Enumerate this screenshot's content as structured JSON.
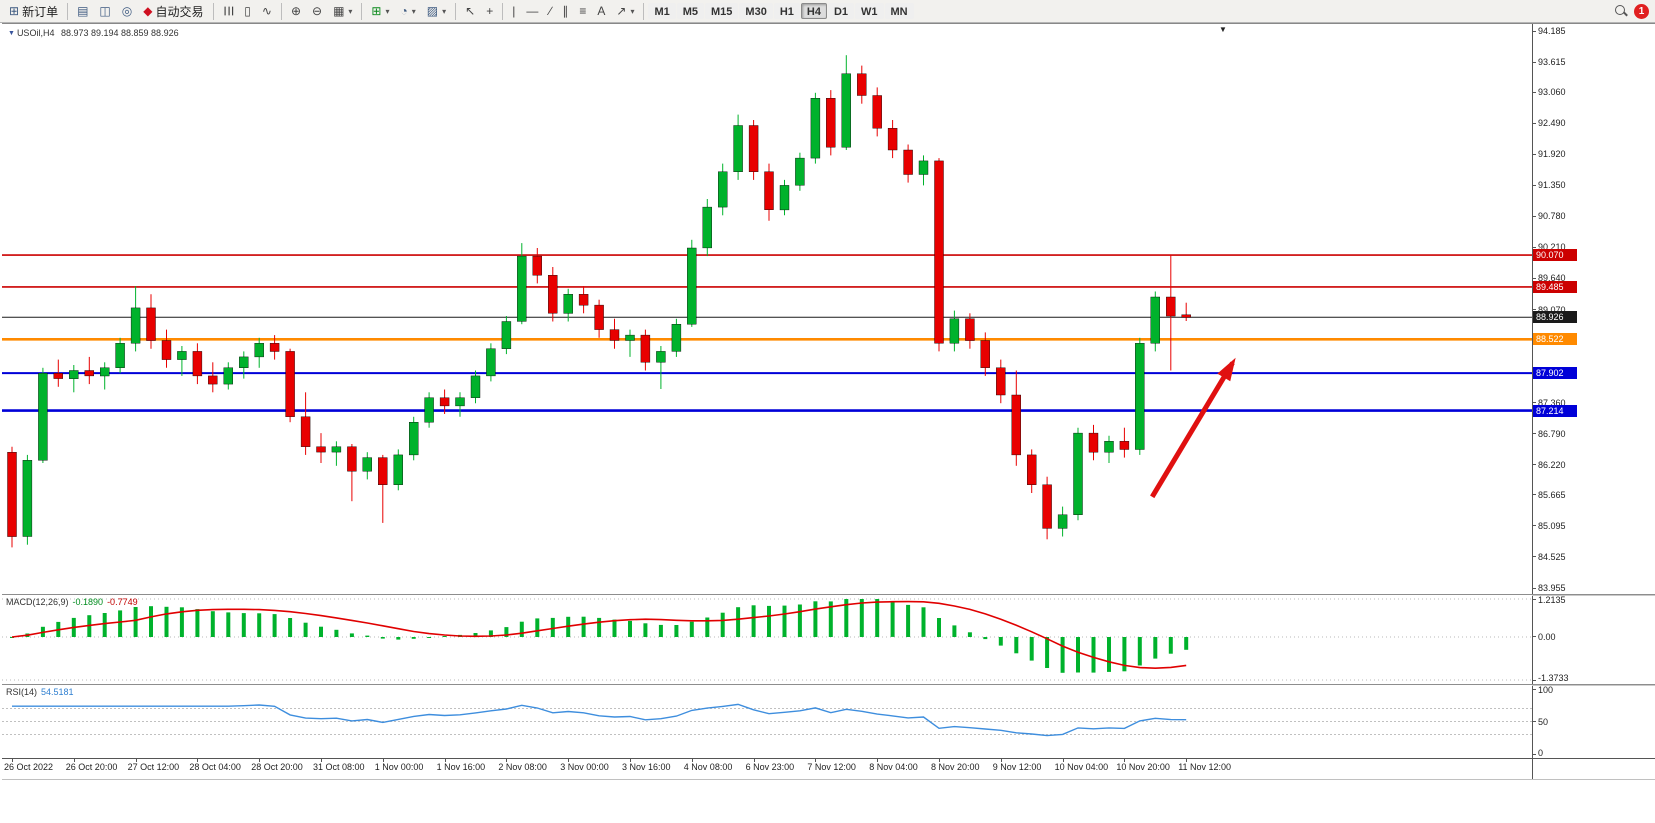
{
  "window": {
    "badge_count": "1"
  },
  "toolbar": {
    "new_order_label": "新订单",
    "auto_trading_label": "自动交易",
    "timeframes": [
      "M1",
      "M5",
      "M15",
      "M30",
      "H1",
      "H4",
      "D1",
      "W1",
      "MN"
    ],
    "active_timeframe": "H4",
    "icons": {
      "new_order": "⊞",
      "charts": "▤",
      "market_watch": "◫",
      "navigator": "◎",
      "auto_trading": "◆",
      "bar_chart": "☰",
      "candlestick": "▯",
      "line_chart": "∿",
      "zoom_in": "⊕",
      "zoom_out": "⊖",
      "tile_windows": "▦",
      "new_chart": "⊞",
      "profiles": "◔",
      "templates": "▨",
      "cursor": "↖",
      "crosshair": "+",
      "vline": "|",
      "hline": "—",
      "trendline": "∕",
      "channel": "∥",
      "fibonacci": "≡",
      "text": "A",
      "arrows": "↗",
      "caret": "▾",
      "marker": "▼"
    }
  },
  "chart": {
    "title": "USOil,H4",
    "ohlc_text": "88.973 89.194 88.859 88.926",
    "macd_label": "MACD(12,26,9)",
    "rsi_label": "RSI(14)"
  },
  "chart_data": [
    {
      "type": "candlestick",
      "symbol": "USOil",
      "timeframe": "H4",
      "current_ohlc": {
        "open": "88.973",
        "high": "89.194",
        "low": "88.859",
        "close": "88.926"
      },
      "ylim": [
        83.955,
        94.185
      ],
      "up_color": "#00b22c",
      "down_color": "#e80000",
      "y_ticks": [
        "94.185",
        "93.615",
        "93.060",
        "92.490",
        "91.920",
        "91.350",
        "90.780",
        "90.210",
        "89.640",
        "89.070",
        "88.500",
        "87.930",
        "87.360",
        "86.790",
        "86.220",
        "85.665",
        "85.095",
        "84.525",
        "83.955"
      ],
      "x_labels": [
        "26 Oct 2022",
        "26 Oct 20:00",
        "27 Oct 12:00",
        "28 Oct 04:00",
        "28 Oct 20:00",
        "31 Oct 08:00",
        "1 Nov 00:00",
        "1 Nov 16:00",
        "2 Nov 08:00",
        "3 Nov 00:00",
        "3 Nov 16:00",
        "4 Nov 08:00",
        "6 Nov 23:00",
        "7 Nov 12:00",
        "8 Nov 04:00",
        "8 Nov 20:00",
        "9 Nov 12:00",
        "10 Nov 04:00",
        "10 Nov 20:00",
        "11 Nov 12:00"
      ],
      "price_lines": [
        {
          "price": 90.07,
          "label": "90.070",
          "color": "#cc0000",
          "width": 1.6
        },
        {
          "price": 89.485,
          "label": "89.485",
          "color": "#cc0000",
          "width": 1.6
        },
        {
          "price": 88.926,
          "label": "88.926",
          "color": "#1a1a1a",
          "width": 1
        },
        {
          "price": 88.522,
          "label": "88.522",
          "color": "#ff8a00",
          "width": 2.6
        },
        {
          "price": 87.902,
          "label": "87.902",
          "color": "#0000d8",
          "width": 2
        },
        {
          "price": 87.214,
          "label": "87.214",
          "color": "#0000d8",
          "width": 2.6
        }
      ],
      "candles": [
        [
          86.45,
          86.55,
          84.7,
          84.9
        ],
        [
          84.9,
          86.4,
          84.75,
          86.3
        ],
        [
          86.3,
          88,
          86.25,
          87.9
        ],
        [
          87.9,
          88.15,
          87.65,
          87.8
        ],
        [
          87.8,
          88.05,
          87.55,
          87.95
        ],
        [
          87.95,
          88.2,
          87.7,
          87.85
        ],
        [
          87.85,
          88.1,
          87.6,
          88
        ],
        [
          88,
          88.55,
          87.9,
          88.45
        ],
        [
          88.45,
          89.5,
          88.3,
          89.1
        ],
        [
          89.1,
          89.35,
          88.35,
          88.5
        ],
        [
          88.5,
          88.7,
          88,
          88.15
        ],
        [
          88.15,
          88.4,
          87.85,
          88.3
        ],
        [
          88.3,
          88.45,
          87.7,
          87.85
        ],
        [
          87.85,
          88.1,
          87.55,
          87.7
        ],
        [
          87.7,
          88.1,
          87.6,
          88
        ],
        [
          88,
          88.3,
          87.8,
          88.2
        ],
        [
          88.2,
          88.55,
          88,
          88.45
        ],
        [
          88.45,
          88.6,
          88.15,
          88.3
        ],
        [
          88.3,
          88.35,
          87,
          87.1
        ],
        [
          87.1,
          87.55,
          86.4,
          86.55
        ],
        [
          86.55,
          86.8,
          86.25,
          86.45
        ],
        [
          86.45,
          86.65,
          86.2,
          86.55
        ],
        [
          86.55,
          86.6,
          85.55,
          86.1
        ],
        [
          86.1,
          86.45,
          85.95,
          86.35
        ],
        [
          86.35,
          86.4,
          85.15,
          85.85
        ],
        [
          85.85,
          86.5,
          85.75,
          86.4
        ],
        [
          86.4,
          87.1,
          86.3,
          87
        ],
        [
          87,
          87.55,
          86.9,
          87.45
        ],
        [
          87.45,
          87.6,
          87.15,
          87.3
        ],
        [
          87.3,
          87.55,
          87.1,
          87.45
        ],
        [
          87.45,
          87.95,
          87.35,
          87.85
        ],
        [
          87.85,
          88.45,
          87.75,
          88.35
        ],
        [
          88.35,
          88.95,
          88.25,
          88.85
        ],
        [
          88.85,
          90.29,
          88.8,
          90.05
        ],
        [
          90.05,
          90.2,
          89.55,
          89.7
        ],
        [
          89.7,
          89.85,
          88.85,
          89
        ],
        [
          89,
          89.45,
          88.85,
          89.35
        ],
        [
          89.35,
          89.5,
          89,
          89.15
        ],
        [
          89.15,
          89.25,
          88.55,
          88.7
        ],
        [
          88.7,
          88.9,
          88.35,
          88.5
        ],
        [
          88.5,
          88.7,
          88.2,
          88.6
        ],
        [
          88.6,
          88.7,
          87.95,
          88.1
        ],
        [
          88.1,
          88.4,
          87.61,
          88.3
        ],
        [
          88.3,
          88.9,
          88.2,
          88.8
        ],
        [
          88.8,
          90.35,
          88.75,
          90.2
        ],
        [
          90.2,
          91.1,
          90.05,
          90.95
        ],
        [
          90.95,
          91.75,
          90.8,
          91.6
        ],
        [
          91.6,
          92.65,
          91.45,
          92.45
        ],
        [
          92.45,
          92.55,
          91.45,
          91.6
        ],
        [
          91.6,
          91.75,
          90.7,
          90.9
        ],
        [
          90.9,
          91.45,
          90.8,
          91.35
        ],
        [
          91.35,
          91.95,
          91.25,
          91.85
        ],
        [
          91.85,
          93.05,
          91.75,
          92.95
        ],
        [
          92.95,
          93.1,
          91.9,
          92.05
        ],
        [
          92.05,
          93.74,
          92,
          93.4
        ],
        [
          93.4,
          93.55,
          92.85,
          93
        ],
        [
          93,
          93.15,
          92.25,
          92.4
        ],
        [
          92.4,
          92.55,
          91.85,
          92
        ],
        [
          92,
          92.1,
          91.4,
          91.55
        ],
        [
          91.55,
          91.9,
          91.35,
          91.8
        ],
        [
          91.8,
          91.85,
          88.3,
          88.45
        ],
        [
          88.45,
          89.05,
          88.3,
          88.9
        ],
        [
          88.9,
          89,
          88.35,
          88.5
        ],
        [
          88.5,
          88.65,
          87.85,
          88
        ],
        [
          88,
          88.15,
          87.35,
          87.5
        ],
        [
          87.5,
          87.95,
          86.2,
          86.4
        ],
        [
          86.4,
          86.5,
          85.7,
          85.85
        ],
        [
          85.85,
          86,
          84.85,
          85.05
        ],
        [
          85.05,
          85.45,
          84.9,
          85.3
        ],
        [
          85.3,
          86.9,
          85.2,
          86.8
        ],
        [
          86.8,
          86.95,
          86.3,
          86.45
        ],
        [
          86.45,
          86.75,
          86.25,
          86.65
        ],
        [
          86.65,
          86.9,
          86.35,
          86.5
        ],
        [
          86.5,
          88.55,
          86.4,
          88.45
        ],
        [
          88.45,
          89.4,
          88.3,
          89.3
        ],
        [
          89.3,
          90.07,
          87.95,
          88.95
        ],
        [
          88.973,
          89.194,
          88.859,
          88.926
        ]
      ],
      "arrow": {
        "from": {
          "index": 73.8,
          "price": 85.63
        },
        "to": {
          "index": 79.0,
          "price": 88.09
        },
        "color": "#e01010"
      }
    },
    {
      "type": "bar+line",
      "name": "MACD(12,26,9)",
      "values": [
        "-0.1890",
        "-0.7749"
      ],
      "params": {
        "fast": 12,
        "slow": 26,
        "signal": 9
      },
      "ylim": [
        -1.3733,
        1.2135
      ],
      "y_ticks": [
        "1.2135",
        "0.00",
        "-1.3733"
      ],
      "bar_color": "#00b22c",
      "signal_color": "#e00000"
    },
    {
      "type": "line",
      "name": "RSI(14)",
      "value": "54.5181",
      "period": 14,
      "ylim": [
        0,
        100
      ],
      "levels": [
        30,
        50,
        70
      ],
      "y_ticks": [
        "100",
        "50",
        "0"
      ],
      "line_color": "#3e8ede"
    }
  ]
}
